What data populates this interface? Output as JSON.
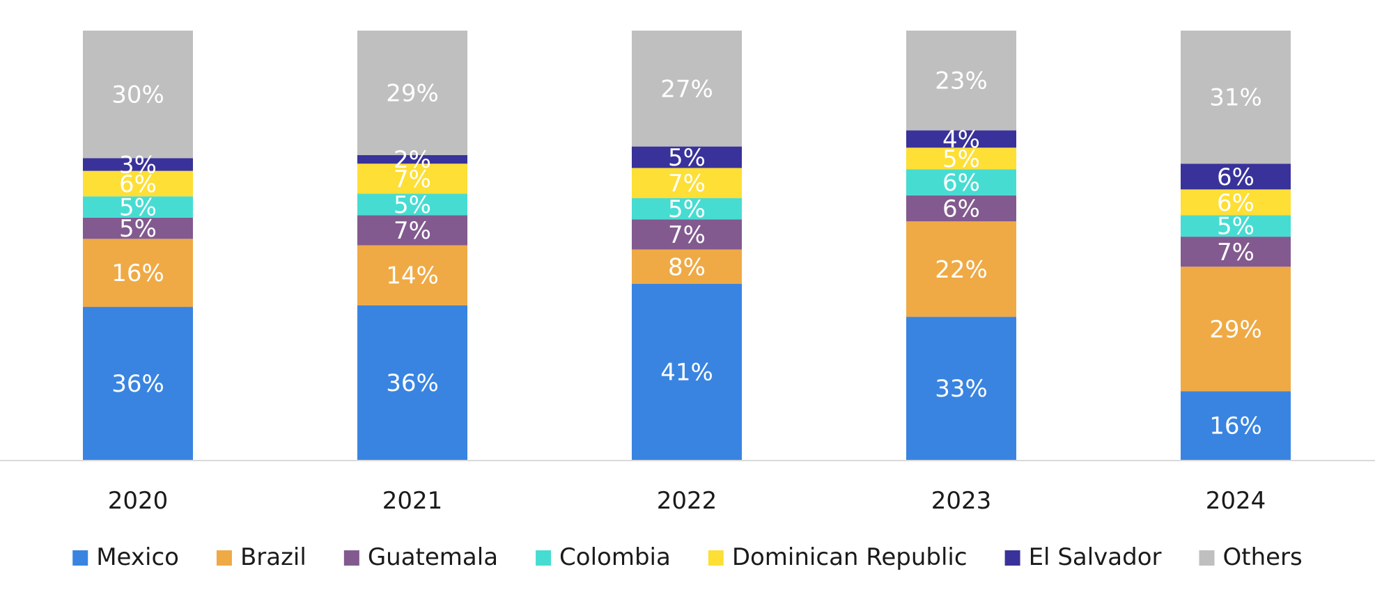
{
  "chart_data": {
    "type": "bar",
    "stacked": true,
    "normalized": true,
    "categories": [
      "2020",
      "2021",
      "2022",
      "2023",
      "2024"
    ],
    "series": [
      {
        "name": "Mexico",
        "color": "#3984E0",
        "values": [
          36,
          36,
          41,
          33,
          16
        ]
      },
      {
        "name": "Brazil",
        "color": "#EFAA45",
        "values": [
          16,
          14,
          8,
          22,
          29
        ]
      },
      {
        "name": "Guatemala",
        "color": "#825A8F",
        "values": [
          5,
          7,
          7,
          6,
          7
        ]
      },
      {
        "name": "Colombia",
        "color": "#47DCD2",
        "values": [
          5,
          5,
          5,
          6,
          5
        ]
      },
      {
        "name": "Dominican Republic",
        "color": "#FDDF36",
        "values": [
          6,
          7,
          7,
          5,
          6
        ]
      },
      {
        "name": "El Salvador",
        "color": "#39329A",
        "values": [
          3,
          2,
          5,
          4,
          6
        ]
      },
      {
        "name": "Others",
        "color": "#BFBFBF",
        "values": [
          30,
          29,
          27,
          23,
          31
        ]
      }
    ],
    "value_suffix": "%",
    "ylim": [
      0,
      100
    ],
    "grid": false,
    "legend_position": "bottom",
    "axis_color": "#D9D9D9"
  }
}
